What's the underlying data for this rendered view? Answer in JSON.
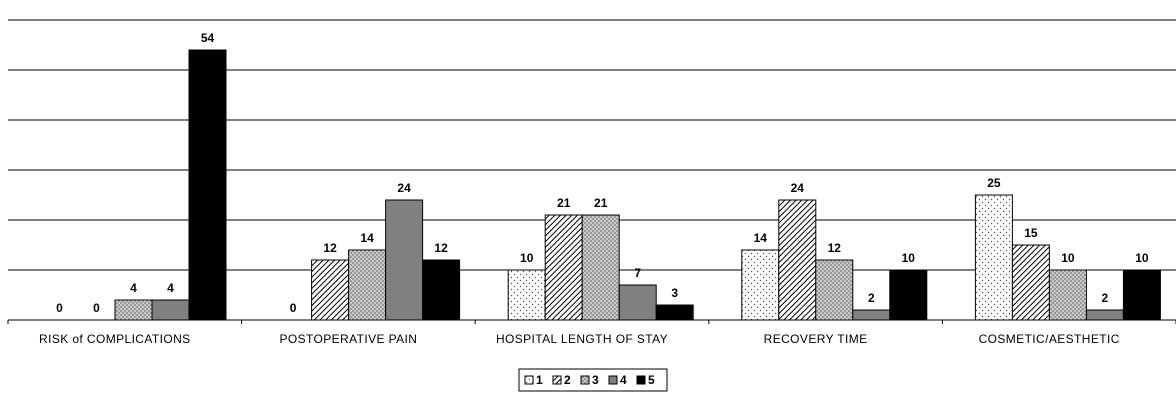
{
  "chart_data": {
    "type": "bar",
    "categories": [
      "RISK of COMPLICATIONS",
      "POSTOPERATIVE PAIN",
      "HOSPITAL LENGTH OF STAY",
      "RECOVERY TIME",
      "COSMETIC/AESTHETIC"
    ],
    "series": [
      {
        "name": "1",
        "values": [
          0,
          0,
          10,
          14,
          25
        ],
        "color": "#ffffff",
        "pattern": "dots-sparse"
      },
      {
        "name": "2",
        "values": [
          0,
          12,
          21,
          24,
          15
        ],
        "color": "#ffffff",
        "pattern": "diagonal-hatch"
      },
      {
        "name": "3",
        "values": [
          4,
          14,
          21,
          12,
          10
        ],
        "color": "#8c8c8c",
        "pattern": "dots-dense"
      },
      {
        "name": "4",
        "values": [
          4,
          24,
          7,
          2,
          2
        ],
        "color": "#808080",
        "pattern": "solid"
      },
      {
        "name": "5",
        "values": [
          54,
          12,
          3,
          10,
          10
        ],
        "color": "#000000",
        "pattern": "solid"
      }
    ],
    "title": "",
    "xlabel": "",
    "ylabel": "",
    "ylim": [
      0,
      60
    ],
    "grid": true,
    "legend_position": "bottom-center"
  }
}
